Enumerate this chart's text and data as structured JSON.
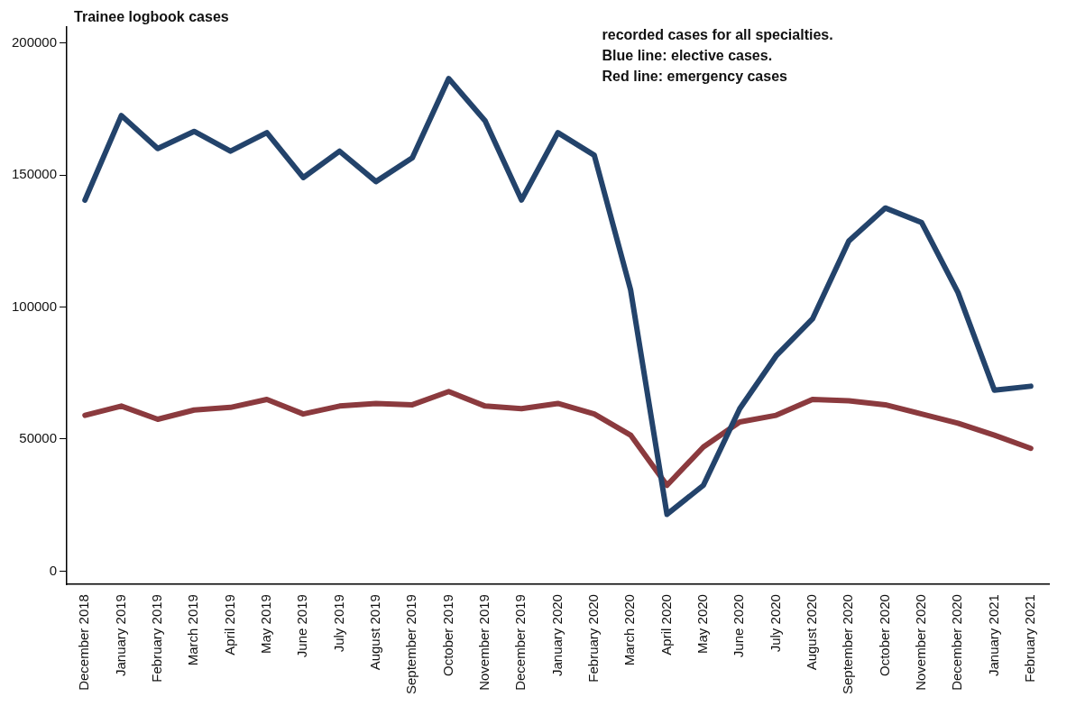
{
  "chart_data": {
    "type": "line",
    "title": "Trainee logbook cases",
    "categories": [
      "December 2018",
      "January 2019",
      "February 2019",
      "March 2019",
      "April 2019",
      "May 2019",
      "June 2019",
      "July 2019",
      "August 2019",
      "September 2019",
      "October 2019",
      "November 2019",
      "December 2019",
      "January 2020",
      "February 2020",
      "March 2020",
      "April 2020",
      "May 2020",
      "June 2020",
      "July 2020",
      "August 2020",
      "September 2020",
      "October 2020",
      "November 2020",
      "December 2020",
      "January 2021",
      "February 2021"
    ],
    "series": [
      {
        "color": "#23436b",
        "values": [
          140500,
          172500,
          160000,
          166500,
          159000,
          166000,
          149000,
          159000,
          147500,
          156500,
          186500,
          170500,
          140500,
          166000,
          157500,
          106500,
          21500,
          32500,
          61500,
          81500,
          95500,
          125000,
          137500,
          132000,
          105500,
          68500,
          70000
        ]
      },
      {
        "color": "#8b3a3e",
        "values": [
          59000,
          62500,
          57500,
          61000,
          62000,
          65000,
          59500,
          62500,
          63500,
          63000,
          68000,
          62500,
          61500,
          63500,
          59500,
          51500,
          32500,
          47000,
          56500,
          59000,
          65000,
          64500,
          63000,
          59500,
          56000,
          51500,
          46500
        ]
      }
    ],
    "ylim": [
      -5000,
      206000
    ],
    "yticks": [
      0,
      50000,
      100000,
      150000,
      200000
    ],
    "grid": false,
    "legend": false,
    "marker": "none",
    "line_style": "solid",
    "annotations": [
      "recorded cases for all specialties.",
      "Blue line: elective cases.",
      "Red line: emergency cases"
    ]
  }
}
